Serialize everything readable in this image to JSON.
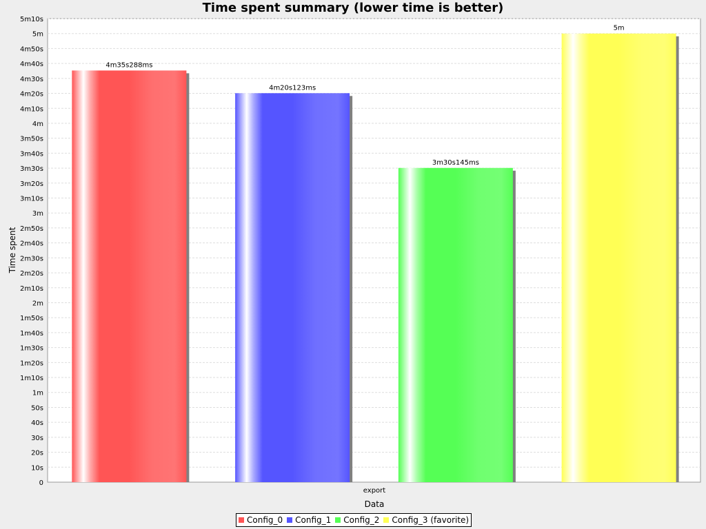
{
  "chart_data": {
    "type": "bar",
    "title": "Time spent summary (lower time is better)",
    "xlabel": "Data",
    "ylabel": "Time spent",
    "categories": [
      "export"
    ],
    "ylim": [
      0,
      310
    ],
    "y_unit": "seconds",
    "grid": true,
    "legend_position": "bottom",
    "y_tick_labels": [
      "0",
      "10s",
      "20s",
      "30s",
      "40s",
      "50s",
      "1m",
      "1m10s",
      "1m20s",
      "1m30s",
      "1m40s",
      "1m50s",
      "2m",
      "2m10s",
      "2m20s",
      "2m30s",
      "2m40s",
      "2m50s",
      "3m",
      "3m10s",
      "3m20s",
      "3m30s",
      "3m40s",
      "3m50s",
      "4m",
      "4m10s",
      "4m20s",
      "4m30s",
      "4m40s",
      "4m50s",
      "5m",
      "5m10s"
    ],
    "series": [
      {
        "name": "Config_0",
        "values": [
          275.288
        ],
        "label": "4m35s288ms",
        "color": "#ff5555"
      },
      {
        "name": "Config_1",
        "values": [
          260.123
        ],
        "label": "4m20s123ms",
        "color": "#5555ff"
      },
      {
        "name": "Config_2",
        "values": [
          210.145
        ],
        "label": "3m30s145ms",
        "color": "#55ff55"
      },
      {
        "name": "Config_3 (favorite)",
        "values": [
          300
        ],
        "label": "5m",
        "color": "#ffff55"
      }
    ]
  }
}
